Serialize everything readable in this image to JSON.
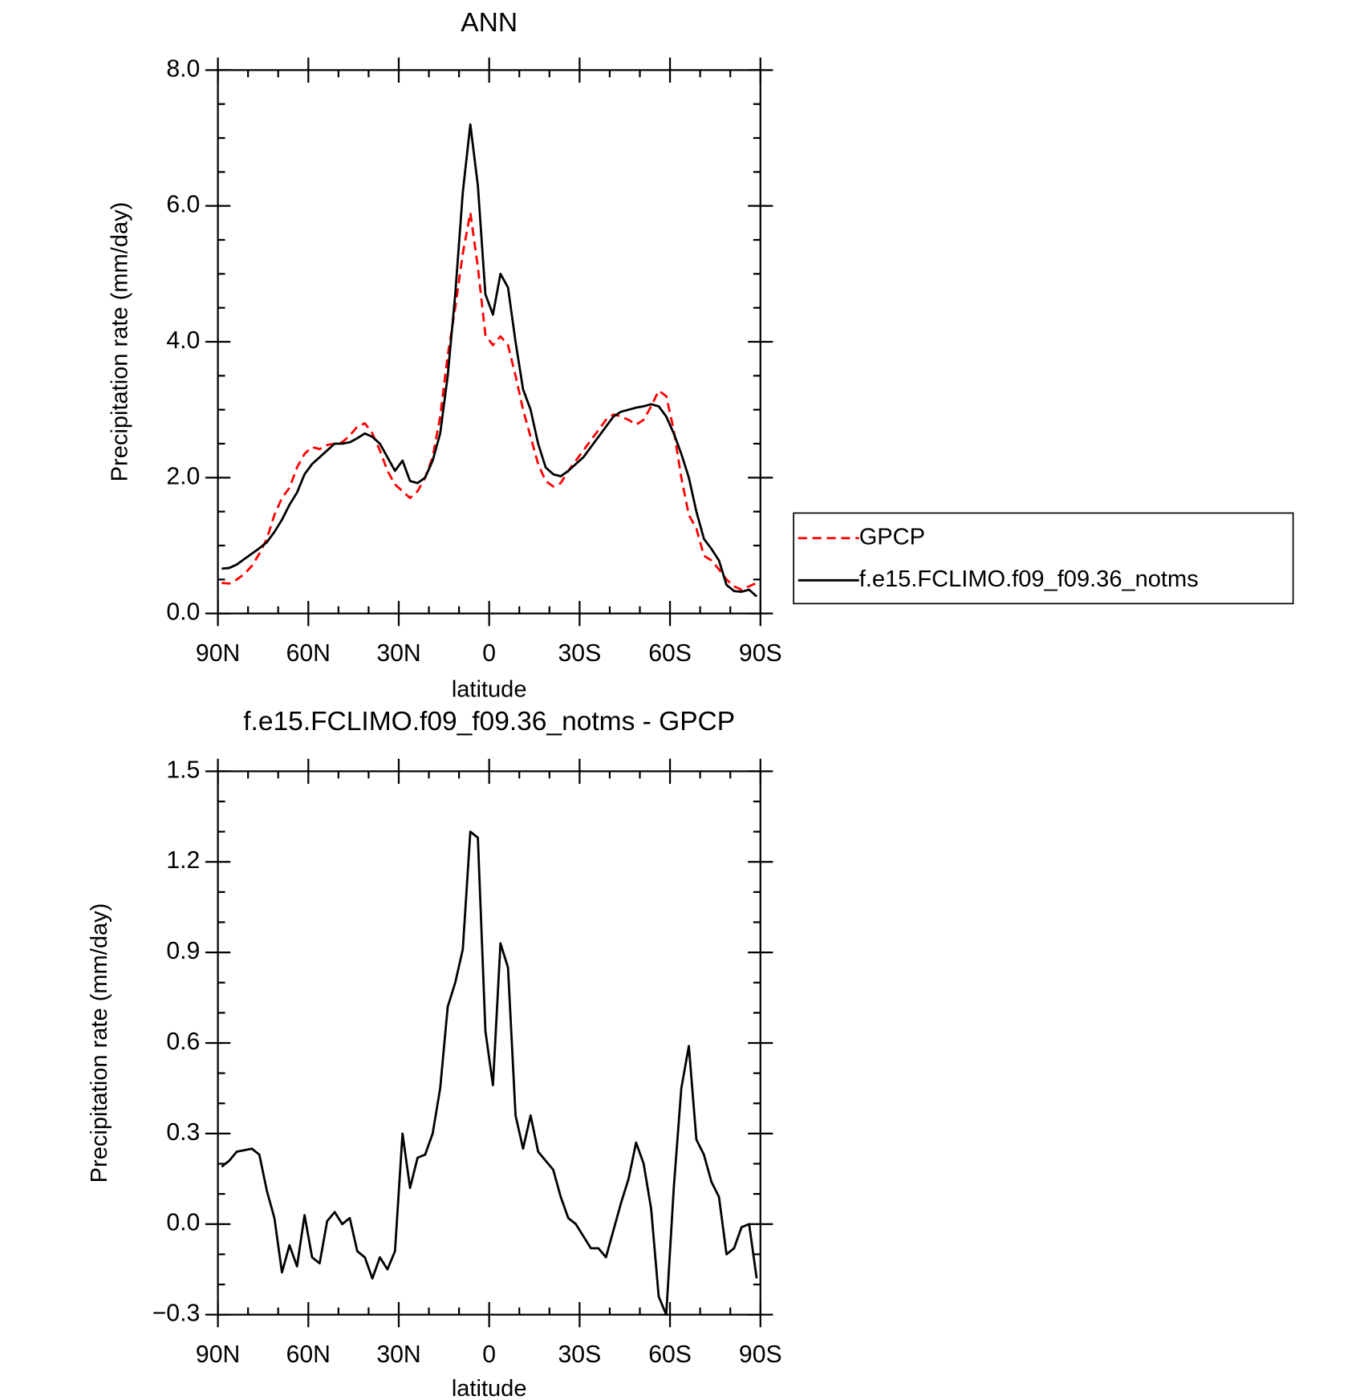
{
  "chart_data": [
    {
      "type": "line",
      "title": "ANN",
      "xlabel": "latitude",
      "ylabel": "Precipitation rate (mm/day)",
      "x": [
        88.75,
        86.25,
        83.75,
        81.25,
        78.75,
        76.25,
        73.75,
        71.25,
        68.75,
        66.25,
        63.75,
        61.25,
        58.75,
        56.25,
        53.75,
        51.25,
        48.75,
        46.25,
        43.75,
        41.25,
        38.75,
        36.25,
        33.75,
        31.25,
        28.75,
        26.25,
        23.75,
        21.25,
        18.75,
        16.25,
        13.75,
        11.25,
        8.75,
        6.25,
        3.75,
        1.25,
        -1.25,
        -3.75,
        -6.25,
        -8.75,
        -11.25,
        -13.75,
        -16.25,
        -18.75,
        -21.25,
        -23.75,
        -26.25,
        -28.75,
        -31.25,
        -33.75,
        -36.25,
        -38.75,
        -41.25,
        -43.75,
        -46.25,
        -48.75,
        -51.25,
        -53.75,
        -56.25,
        -58.75,
        -61.25,
        -63.75,
        -66.25,
        -68.75,
        -71.25,
        -73.75,
        -76.25,
        -78.75,
        -81.25,
        -83.75,
        -86.25,
        -88.75
      ],
      "xlim": [
        90,
        -90
      ],
      "xticks": [
        {
          "value": 90,
          "label": "90N"
        },
        {
          "value": 60,
          "label": "60N"
        },
        {
          "value": 30,
          "label": "30N"
        },
        {
          "value": 0,
          "label": "0"
        },
        {
          "value": -30,
          "label": "30S"
        },
        {
          "value": -60,
          "label": "60S"
        },
        {
          "value": -90,
          "label": "90S"
        }
      ],
      "ylim": [
        0,
        8
      ],
      "yticks": [
        {
          "value": 0,
          "label": "0.0"
        },
        {
          "value": 2,
          "label": "2.0"
        },
        {
          "value": 4,
          "label": "4.0"
        },
        {
          "value": 6,
          "label": "6.0"
        },
        {
          "value": 8,
          "label": "8.0"
        }
      ],
      "legend": "right",
      "series": [
        {
          "name": "GPCP",
          "color": "#ff0000",
          "line_style": "dashed",
          "values": [
            0.45,
            0.44,
            0.5,
            0.58,
            0.7,
            0.88,
            1.1,
            1.45,
            1.7,
            1.85,
            2.15,
            2.35,
            2.45,
            2.42,
            2.48,
            2.5,
            2.52,
            2.62,
            2.75,
            2.8,
            2.65,
            2.4,
            2.1,
            1.9,
            1.8,
            1.7,
            1.8,
            2.0,
            2.3,
            2.9,
            3.8,
            4.5,
            5.3,
            5.9,
            5.1,
            4.1,
            3.95,
            4.08,
            3.95,
            3.5,
            3.0,
            2.6,
            2.2,
            1.95,
            1.87,
            1.92,
            2.1,
            2.25,
            2.4,
            2.55,
            2.7,
            2.85,
            2.93,
            2.9,
            2.85,
            2.78,
            2.85,
            3.05,
            3.28,
            3.2,
            2.7,
            2.0,
            1.45,
            1.25,
            0.85,
            0.78,
            0.65,
            0.5,
            0.4,
            0.35,
            0.4,
            0.45
          ]
        },
        {
          "name": "f.e15.FCLIMO.f09_f09.36_notms",
          "color": "#000000",
          "line_style": "solid",
          "values": [
            0.66,
            0.67,
            0.72,
            0.8,
            0.88,
            0.96,
            1.05,
            1.2,
            1.38,
            1.6,
            1.78,
            2.05,
            2.2,
            2.3,
            2.4,
            2.5,
            2.5,
            2.52,
            2.58,
            2.65,
            2.6,
            2.5,
            2.3,
            2.1,
            2.25,
            1.95,
            1.92,
            2.0,
            2.25,
            2.65,
            3.5,
            4.7,
            6.2,
            7.2,
            6.3,
            4.7,
            4.4,
            5.0,
            4.8,
            4.0,
            3.3,
            3.0,
            2.5,
            2.15,
            2.05,
            2.02,
            2.1,
            2.2,
            2.3,
            2.45,
            2.6,
            2.75,
            2.9,
            2.97,
            3.0,
            3.03,
            3.05,
            3.08,
            3.05,
            2.9,
            2.65,
            2.35,
            2.0,
            1.5,
            1.1,
            0.95,
            0.78,
            0.42,
            0.33,
            0.32,
            0.35,
            0.25
          ]
        }
      ]
    },
    {
      "type": "line",
      "title": "f.e15.FCLIMO.f09_f09.36_notms - GPCP",
      "xlabel": "latitude",
      "ylabel": "Precipitation rate (mm/day)",
      "x": [
        88.75,
        86.25,
        83.75,
        81.25,
        78.75,
        76.25,
        73.75,
        71.25,
        68.75,
        66.25,
        63.75,
        61.25,
        58.75,
        56.25,
        53.75,
        51.25,
        48.75,
        46.25,
        43.75,
        41.25,
        38.75,
        36.25,
        33.75,
        31.25,
        28.75,
        26.25,
        23.75,
        21.25,
        18.75,
        16.25,
        13.75,
        11.25,
        8.75,
        6.25,
        3.75,
        1.25,
        -1.25,
        -3.75,
        -6.25,
        -8.75,
        -11.25,
        -13.75,
        -16.25,
        -18.75,
        -21.25,
        -23.75,
        -26.25,
        -28.75,
        -31.25,
        -33.75,
        -36.25,
        -38.75,
        -41.25,
        -43.75,
        -46.25,
        -48.75,
        -51.25,
        -53.75,
        -56.25,
        -58.75,
        -61.25,
        -63.75,
        -66.25,
        -68.75,
        -71.25,
        -73.75,
        -76.25,
        -78.75,
        -81.25,
        -83.75,
        -86.25,
        -88.75
      ],
      "xlim": [
        90,
        -90
      ],
      "xticks": [
        {
          "value": 90,
          "label": "90N"
        },
        {
          "value": 60,
          "label": "60N"
        },
        {
          "value": 30,
          "label": "30N"
        },
        {
          "value": 0,
          "label": "0"
        },
        {
          "value": -30,
          "label": "30S"
        },
        {
          "value": -60,
          "label": "60S"
        },
        {
          "value": -90,
          "label": "90S"
        }
      ],
      "ylim": [
        -0.3,
        1.5
      ],
      "yticks": [
        {
          "value": -0.3,
          "label": "−0.3"
        },
        {
          "value": 0,
          "label": "0.0"
        },
        0.3,
        0.6,
        0.9,
        1.2,
        1.5
      ],
      "series": [
        {
          "color": "#000000",
          "line_style": "solid",
          "values": [
            0.19,
            0.21,
            0.24,
            0.245,
            0.25,
            0.23,
            0.11,
            0.02,
            -0.16,
            -0.07,
            -0.14,
            0.03,
            -0.11,
            -0.13,
            0.01,
            0.04,
            0.0,
            0.02,
            -0.09,
            -0.11,
            -0.18,
            -0.11,
            -0.15,
            -0.09,
            0.3,
            0.12,
            0.22,
            0.23,
            0.3,
            0.45,
            0.72,
            0.8,
            0.91,
            1.3,
            1.28,
            0.64,
            0.46,
            0.93,
            0.85,
            0.36,
            0.25,
            0.36,
            0.24,
            0.21,
            0.18,
            0.09,
            0.02,
            0.0,
            -0.04,
            -0.08,
            -0.08,
            -0.11,
            -0.02,
            0.07,
            0.15,
            0.27,
            0.2,
            0.05,
            -0.24,
            -0.3,
            0.12,
            0.45,
            0.59,
            0.28,
            0.23,
            0.14,
            0.09,
            -0.1,
            -0.08,
            -0.01,
            0.0,
            -0.18
          ]
        }
      ]
    }
  ]
}
